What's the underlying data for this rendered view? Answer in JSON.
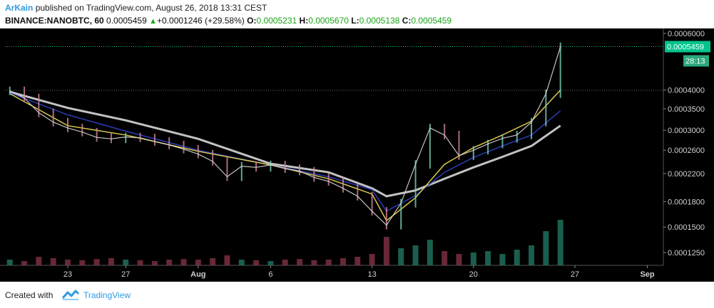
{
  "header": {
    "author": "ArKain",
    "published": "published on TradingView.com, August 26, 2018 13:31 CEST",
    "symbol": "BINANCE:NANOBTC, 60",
    "last": "0.0005459",
    "change": "+0.0001246 (+29.58%)",
    "o_label": "O:",
    "o_value": "0.0005231",
    "h_label": "H:",
    "h_value": "0.0005670",
    "l_label": "L:",
    "l_value": "0.0005138",
    "c_label": "C:",
    "c_value": "0.0005459"
  },
  "footer": {
    "created_with": "Created with",
    "brand": "TradingView"
  },
  "colors": {
    "background": "#000000",
    "price_line": "#00c48c",
    "ma_fast": "#e8d44d",
    "ma_mid": "#2d3fbf",
    "ma_slow": "#cccccc",
    "candle_up": "#7ad3bd",
    "candle_down": "#d48a9a",
    "brand": "#2e9be0"
  },
  "chart_data": {
    "type": "line",
    "symbol": "BINANCE:NANOBTC",
    "interval": "60",
    "x_ticks": [
      "23",
      "27",
      "Aug",
      "6",
      "13",
      "20",
      "27",
      "Sep"
    ],
    "y_ticks": [
      0.0006,
      0.0004,
      0.00035,
      0.0003,
      0.00026,
      0.00022,
      0.00018,
      0.00015,
      0.000125
    ],
    "y_tick_labels": [
      "0.0006000",
      "0.0004000",
      "0.0003500",
      "0.0003000",
      "0.0002600",
      "0.0002200",
      "0.0001800",
      "0.0001500",
      "0.0001250"
    ],
    "y_scale": "log",
    "last_price_label": "0.0005459",
    "countdown_label": "28:13",
    "last_price": 0.0005459,
    "series": [
      {
        "kind": "price",
        "x": [
          "2018-07-19",
          "2018-07-20",
          "2018-07-21",
          "2018-07-22",
          "2018-07-23",
          "2018-07-24",
          "2018-07-25",
          "2018-07-26",
          "2018-07-27",
          "2018-07-28",
          "2018-07-29",
          "2018-07-30",
          "2018-07-31",
          "2018-08-01",
          "2018-08-02",
          "2018-08-03",
          "2018-08-04",
          "2018-08-05",
          "2018-08-06",
          "2018-08-07",
          "2018-08-08",
          "2018-08-09",
          "2018-08-10",
          "2018-08-11",
          "2018-08-12",
          "2018-08-13",
          "2018-08-14",
          "2018-08-15",
          "2018-08-16",
          "2018-08-17",
          "2018-08-18",
          "2018-08-19",
          "2018-08-20",
          "2018-08-21",
          "2018-08-22",
          "2018-08-23",
          "2018-08-24",
          "2018-08-25",
          "2018-08-26"
        ],
        "y": [
          0.000398,
          0.000378,
          0.00034,
          0.000318,
          0.000305,
          0.000296,
          0.000285,
          0.000282,
          0.000286,
          0.000284,
          0.000277,
          0.00027,
          0.000262,
          0.000253,
          0.00024,
          0.000215,
          0.000232,
          0.00023,
          0.000234,
          0.000228,
          0.000224,
          0.000214,
          0.000208,
          0.000198,
          0.000187,
          0.000168,
          0.000152,
          0.000178,
          0.000235,
          0.000305,
          0.00029,
          0.00025,
          0.00026,
          0.000272,
          0.000283,
          0.00029,
          0.000318,
          0.00039,
          0.0005459
        ]
      },
      {
        "kind": "ma_fast",
        "x": [
          "2018-07-19",
          "2018-07-23",
          "2018-07-27",
          "2018-08-01",
          "2018-08-06",
          "2018-08-10",
          "2018-08-13",
          "2018-08-14",
          "2018-08-16",
          "2018-08-18",
          "2018-08-20",
          "2018-08-22",
          "2018-08-24",
          "2018-08-26"
        ],
        "y": [
          0.00039,
          0.00031,
          0.00029,
          0.000258,
          0.000234,
          0.000212,
          0.00019,
          0.000157,
          0.000185,
          0.000235,
          0.000265,
          0.00029,
          0.00032,
          0.0004
        ]
      },
      {
        "kind": "ma_mid",
        "x": [
          "2018-07-19",
          "2018-07-23",
          "2018-07-27",
          "2018-08-01",
          "2018-08-06",
          "2018-08-10",
          "2018-08-13",
          "2018-08-14",
          "2018-08-16",
          "2018-08-18",
          "2018-08-20",
          "2018-08-22",
          "2018-08-24",
          "2018-08-26"
        ],
        "y": [
          0.000392,
          0.000335,
          0.000298,
          0.00026,
          0.000234,
          0.000215,
          0.000196,
          0.000168,
          0.000188,
          0.000222,
          0.000247,
          0.000268,
          0.00029,
          0.000345
        ]
      },
      {
        "kind": "ma_slow",
        "x": [
          "2018-07-19",
          "2018-07-23",
          "2018-07-27",
          "2018-08-01",
          "2018-08-06",
          "2018-08-10",
          "2018-08-13",
          "2018-08-14",
          "2018-08-16",
          "2018-08-18",
          "2018-08-20",
          "2018-08-22",
          "2018-08-24",
          "2018-08-26"
        ],
        "y": [
          0.000395,
          0.000352,
          0.000322,
          0.000282,
          0.000236,
          0.000222,
          0.000198,
          0.000187,
          0.000195,
          0.000212,
          0.00023,
          0.000248,
          0.000268,
          0.00031
        ]
      }
    ],
    "volume": [
      0.2,
      0.15,
      0.3,
      0.25,
      0.2,
      0.18,
      0.22,
      0.25,
      0.2,
      0.18,
      0.15,
      0.2,
      0.22,
      0.2,
      0.25,
      0.35,
      0.2,
      0.18,
      0.15,
      0.2,
      0.22,
      0.18,
      0.2,
      0.25,
      0.3,
      0.4,
      1.0,
      0.6,
      0.7,
      0.9,
      0.5,
      0.4,
      0.45,
      0.5,
      0.4,
      0.55,
      0.7,
      1.2,
      1.6
    ]
  }
}
